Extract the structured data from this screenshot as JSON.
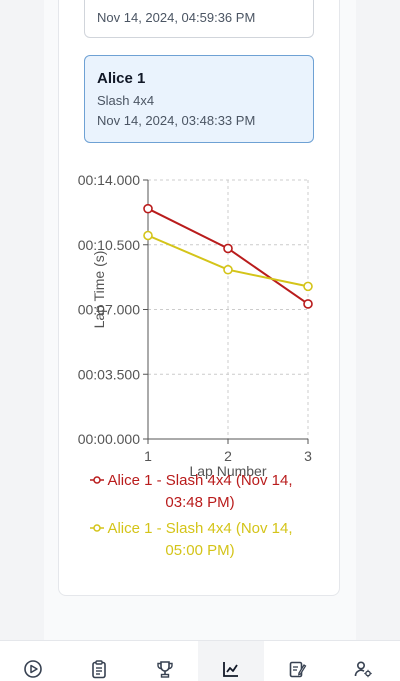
{
  "sessions": [
    {
      "date": "Nov 14, 2024, 04:59:36 PM"
    },
    {
      "title": "Alice 1",
      "subtitle": "Slash 4x4",
      "date": "Nov 14, 2024, 03:48:33 PM"
    }
  ],
  "chart_data": {
    "type": "line",
    "xlabel": "Lap Number",
    "ylabel": "Lap Time (s)",
    "x": [
      1,
      2,
      3
    ],
    "ylim": [
      0,
      14
    ],
    "y_ticks": [
      "00:00.000",
      "00:03.500",
      "00:07.000",
      "00:10.500",
      "00:14.000"
    ],
    "grid": true,
    "legend_position": "bottom",
    "series": [
      {
        "name": "Alice 1 - Slash 4x4 (Nov 14, 03:48 PM)",
        "line1": "Alice 1 - Slash 4x4 (Nov 14,",
        "line2": "03:48 PM)",
        "color": "#b91c1c",
        "values": [
          12.45,
          10.3,
          7.3
        ]
      },
      {
        "name": "Alice 1 - Slash 4x4 (Nov 14, 05:00 PM)",
        "line1": "Alice 1 - Slash 4x4 (Nov 14,",
        "line2": "05:00 PM)",
        "color": "#d4c419",
        "values": [
          11.0,
          9.15,
          8.25
        ]
      }
    ]
  },
  "nav": {
    "tabs": [
      {
        "icon": "play-icon"
      },
      {
        "icon": "clipboard-icon"
      },
      {
        "icon": "trophy-icon"
      },
      {
        "icon": "chart-icon",
        "active": true
      },
      {
        "icon": "notes-icon"
      },
      {
        "icon": "user-settings-icon"
      }
    ]
  }
}
